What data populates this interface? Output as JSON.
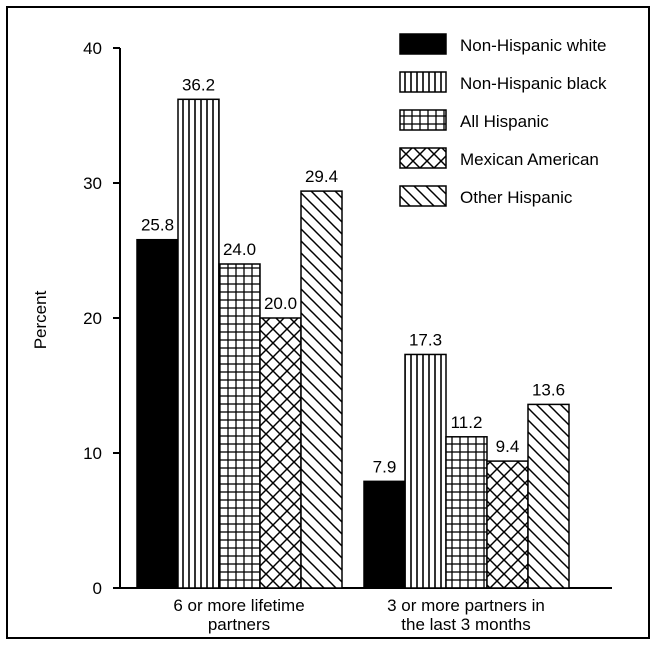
{
  "chart_data": {
    "type": "bar",
    "title": "",
    "xlabel": "",
    "ylabel": "Percent",
    "ylim": [
      0,
      40
    ],
    "yticks": [
      0,
      10,
      20,
      30,
      40
    ],
    "grid": false,
    "legend_position": "top-right",
    "categories": [
      [
        "6 or more lifetime",
        "partners"
      ],
      [
        "3 or more partners in",
        "the last 3 months"
      ]
    ],
    "series": [
      {
        "name": "Non-Hispanic white",
        "pattern": "solid",
        "values": [
          25.8,
          7.9
        ]
      },
      {
        "name": "Non-Hispanic black",
        "pattern": "vertical-lines",
        "values": [
          36.2,
          17.3
        ]
      },
      {
        "name": "All Hispanic",
        "pattern": "grid",
        "values": [
          24.0,
          11.2
        ]
      },
      {
        "name": "Mexican American",
        "pattern": "crosshatch",
        "values": [
          20.0,
          9.4
        ]
      },
      {
        "name": "Other Hispanic",
        "pattern": "diagonal",
        "values": [
          29.4,
          13.6
        ]
      }
    ],
    "data_labels": [
      [
        "25.8",
        "7.9"
      ],
      [
        "36.2",
        "17.3"
      ],
      [
        "24.0",
        "11.2"
      ],
      [
        "20.0",
        "9.4"
      ],
      [
        "29.4",
        "13.6"
      ]
    ],
    "colors": {
      "ink": "#000000",
      "background": "#ffffff"
    }
  }
}
